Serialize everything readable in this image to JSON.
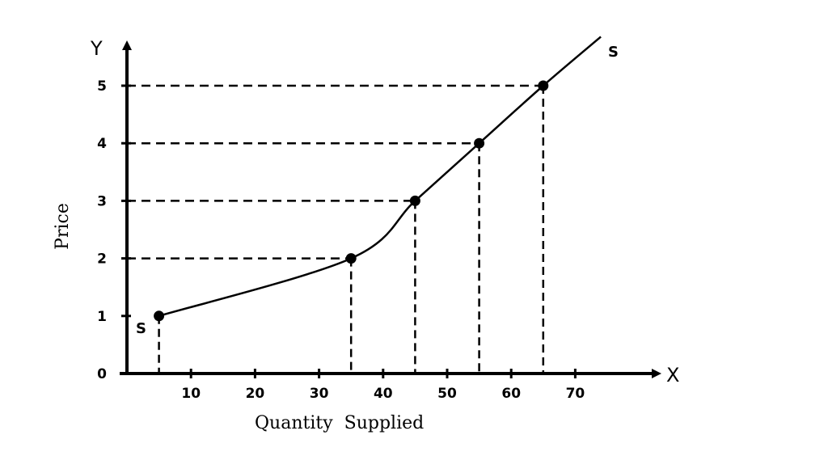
{
  "chart_data": {
    "type": "line",
    "title": "",
    "xlabel": "Quantity  Supplied",
    "ylabel": "Price",
    "x_axis_letter": "X",
    "y_axis_letter": "Y",
    "xlim": [
      0,
      75
    ],
    "ylim": [
      0,
      5.9
    ],
    "x_ticks": [
      {
        "value": 10,
        "label": "10"
      },
      {
        "value": 20,
        "label": "20"
      },
      {
        "value": 30,
        "label": "30"
      },
      {
        "value": 40,
        "label": "40"
      },
      {
        "value": 50,
        "label": "50"
      },
      {
        "value": 60,
        "label": "60"
      },
      {
        "value": 70,
        "label": "70"
      }
    ],
    "y_ticks": [
      {
        "value": 0,
        "label": "0"
      },
      {
        "value": 1,
        "label": "1"
      },
      {
        "value": 2,
        "label": "2"
      },
      {
        "value": 3,
        "label": "3"
      },
      {
        "value": 4,
        "label": "4"
      },
      {
        "value": 5,
        "label": "5"
      }
    ],
    "series": [
      {
        "name": "S",
        "color": "#000000",
        "points": [
          {
            "x": 5,
            "y": 1
          },
          {
            "x": 35,
            "y": 2
          },
          {
            "x": 45,
            "y": 3
          },
          {
            "x": 55,
            "y": 4
          },
          {
            "x": 65,
            "y": 5
          }
        ],
        "extends_to": {
          "x": 74,
          "y": 5.85
        }
      }
    ],
    "curve_label_start": "S",
    "curve_label_end": "S",
    "grid": false,
    "dashed_guides": true
  }
}
